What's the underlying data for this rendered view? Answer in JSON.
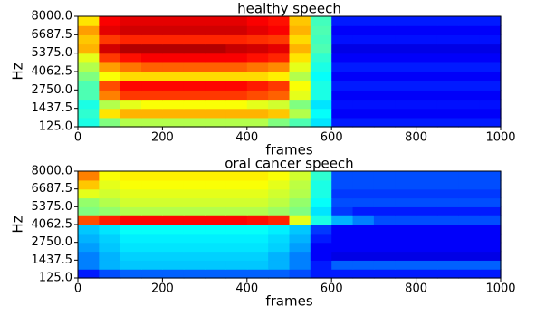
{
  "chart_data": [
    {
      "type": "heatmap",
      "title": "healthy speech",
      "xlabel": "frames",
      "ylabel": "Hz",
      "colormap": "jet",
      "zlim": [
        0,
        1
      ],
      "xlim": [
        0,
        1000
      ],
      "xticks": [
        0,
        200,
        400,
        600,
        800,
        1000
      ],
      "ylim": [
        125,
        8000
      ],
      "yticks": [
        {
          "value": 125,
          "label": "125.0"
        },
        1437.5,
        {
          "value": 2750,
          "label": "2750.0"
        },
        4062.5,
        {
          "value": 5375,
          "label": "5375.0"
        },
        6687.5,
        {
          "value": 8000,
          "label": "8000.0"
        }
      ],
      "xbins": [
        0,
        50,
        100,
        150,
        200,
        250,
        300,
        350,
        400,
        450,
        500,
        550,
        600,
        650,
        700,
        750,
        800,
        850,
        900,
        950,
        1000
      ],
      "ybins": [
        125,
        781.25,
        1437.5,
        2093.75,
        2750,
        3406.25,
        4062.5,
        4718.75,
        5375,
        6031.25,
        6687.5,
        7343.75,
        8000
      ],
      "values": [
        [
          0.4,
          0.5,
          0.55,
          0.55,
          0.55,
          0.55,
          0.55,
          0.55,
          0.55,
          0.5,
          0.45,
          0.35,
          0.15,
          0.15,
          0.15,
          0.15,
          0.15,
          0.15,
          0.15,
          0.15
        ],
        [
          0.42,
          0.65,
          0.7,
          0.7,
          0.7,
          0.7,
          0.7,
          0.7,
          0.7,
          0.68,
          0.55,
          0.38,
          0.12,
          0.12,
          0.12,
          0.12,
          0.12,
          0.12,
          0.12,
          0.12
        ],
        [
          0.4,
          0.55,
          0.6,
          0.62,
          0.62,
          0.62,
          0.62,
          0.62,
          0.6,
          0.58,
          0.5,
          0.35,
          0.14,
          0.14,
          0.14,
          0.14,
          0.14,
          0.14,
          0.14,
          0.14
        ],
        [
          0.45,
          0.75,
          0.82,
          0.82,
          0.82,
          0.82,
          0.82,
          0.82,
          0.8,
          0.78,
          0.6,
          0.4,
          0.12,
          0.12,
          0.12,
          0.12,
          0.12,
          0.12,
          0.12,
          0.12
        ],
        [
          0.45,
          0.8,
          0.87,
          0.87,
          0.87,
          0.87,
          0.87,
          0.87,
          0.85,
          0.82,
          0.62,
          0.4,
          0.15,
          0.15,
          0.15,
          0.15,
          0.15,
          0.15,
          0.15,
          0.15
        ],
        [
          0.5,
          0.62,
          0.66,
          0.66,
          0.66,
          0.66,
          0.66,
          0.66,
          0.66,
          0.64,
          0.55,
          0.38,
          0.12,
          0.12,
          0.12,
          0.12,
          0.12,
          0.12,
          0.12,
          0.12
        ],
        [
          0.55,
          0.72,
          0.76,
          0.78,
          0.78,
          0.78,
          0.78,
          0.78,
          0.76,
          0.74,
          0.6,
          0.4,
          0.15,
          0.15,
          0.15,
          0.15,
          0.15,
          0.15,
          0.15,
          0.15
        ],
        [
          0.6,
          0.82,
          0.86,
          0.88,
          0.88,
          0.88,
          0.88,
          0.88,
          0.86,
          0.84,
          0.65,
          0.42,
          0.12,
          0.12,
          0.12,
          0.12,
          0.12,
          0.12,
          0.12,
          0.12
        ],
        [
          0.7,
          0.92,
          0.95,
          0.95,
          0.95,
          0.95,
          0.95,
          0.93,
          0.92,
          0.9,
          0.7,
          0.45,
          0.1,
          0.1,
          0.1,
          0.1,
          0.1,
          0.1,
          0.1,
          0.1
        ],
        [
          0.68,
          0.82,
          0.84,
          0.84,
          0.84,
          0.84,
          0.84,
          0.84,
          0.83,
          0.82,
          0.66,
          0.44,
          0.14,
          0.14,
          0.14,
          0.14,
          0.14,
          0.14,
          0.14,
          0.14
        ],
        [
          0.72,
          0.9,
          0.92,
          0.92,
          0.92,
          0.92,
          0.92,
          0.92,
          0.9,
          0.88,
          0.7,
          0.45,
          0.12,
          0.12,
          0.12,
          0.12,
          0.12,
          0.12,
          0.12,
          0.12
        ],
        [
          0.65,
          0.88,
          0.9,
          0.9,
          0.9,
          0.9,
          0.9,
          0.9,
          0.88,
          0.86,
          0.68,
          0.44,
          0.15,
          0.15,
          0.15,
          0.15,
          0.15,
          0.15,
          0.15,
          0.15
        ]
      ]
    },
    {
      "type": "heatmap",
      "title": "oral cancer speech",
      "xlabel": "frames",
      "ylabel": "Hz",
      "colormap": "jet",
      "zlim": [
        0,
        1
      ],
      "xlim": [
        0,
        1000
      ],
      "xticks": [
        0,
        200,
        400,
        600,
        800,
        1000
      ],
      "ylim": [
        125,
        8000
      ],
      "yticks": [
        {
          "value": 125,
          "label": "125.0"
        },
        1437.5,
        {
          "value": 2750,
          "label": "2750.0"
        },
        4062.5,
        {
          "value": 5375,
          "label": "5375.0"
        },
        6687.5,
        {
          "value": 8000,
          "label": "8000.0"
        }
      ],
      "xbins": [
        0,
        50,
        100,
        150,
        200,
        250,
        300,
        350,
        400,
        450,
        500,
        550,
        600,
        650,
        700,
        750,
        800,
        850,
        900,
        950,
        1000
      ],
      "ybins": [
        125,
        781.25,
        1437.5,
        2093.75,
        2750,
        3406.25,
        4062.5,
        4718.75,
        5375,
        6031.25,
        6687.5,
        7343.75,
        8000
      ],
      "values": [
        [
          0.15,
          0.2,
          0.22,
          0.22,
          0.22,
          0.22,
          0.22,
          0.22,
          0.22,
          0.22,
          0.2,
          0.15,
          0.15,
          0.15,
          0.15,
          0.15,
          0.15,
          0.15,
          0.15,
          0.15
        ],
        [
          0.25,
          0.3,
          0.32,
          0.32,
          0.32,
          0.32,
          0.32,
          0.32,
          0.32,
          0.3,
          0.25,
          0.15,
          0.22,
          0.22,
          0.22,
          0.22,
          0.22,
          0.22,
          0.22,
          0.22
        ],
        [
          0.25,
          0.3,
          0.33,
          0.33,
          0.33,
          0.33,
          0.33,
          0.33,
          0.33,
          0.3,
          0.25,
          0.12,
          0.1,
          0.1,
          0.1,
          0.1,
          0.1,
          0.1,
          0.1,
          0.1
        ],
        [
          0.28,
          0.32,
          0.35,
          0.35,
          0.35,
          0.35,
          0.35,
          0.35,
          0.35,
          0.33,
          0.28,
          0.12,
          0.12,
          0.12,
          0.12,
          0.12,
          0.12,
          0.12,
          0.12,
          0.12
        ],
        [
          0.3,
          0.33,
          0.36,
          0.36,
          0.36,
          0.36,
          0.36,
          0.36,
          0.36,
          0.34,
          0.3,
          0.15,
          0.12,
          0.12,
          0.12,
          0.12,
          0.12,
          0.12,
          0.12,
          0.12
        ],
        [
          0.32,
          0.35,
          0.38,
          0.38,
          0.38,
          0.38,
          0.38,
          0.38,
          0.38,
          0.36,
          0.32,
          0.18,
          0.12,
          0.12,
          0.12,
          0.12,
          0.12,
          0.12,
          0.12,
          0.12
        ],
        [
          0.8,
          0.85,
          0.87,
          0.87,
          0.87,
          0.87,
          0.87,
          0.87,
          0.86,
          0.84,
          0.6,
          0.4,
          0.3,
          0.25,
          0.2,
          0.2,
          0.2,
          0.2,
          0.2,
          0.2
        ],
        [
          0.5,
          0.52,
          0.55,
          0.55,
          0.55,
          0.55,
          0.55,
          0.55,
          0.55,
          0.53,
          0.5,
          0.35,
          0.18,
          0.15,
          0.15,
          0.15,
          0.15,
          0.15,
          0.15,
          0.15
        ],
        [
          0.52,
          0.55,
          0.58,
          0.58,
          0.58,
          0.58,
          0.58,
          0.58,
          0.58,
          0.56,
          0.52,
          0.38,
          0.2,
          0.2,
          0.2,
          0.2,
          0.2,
          0.2,
          0.2,
          0.2
        ],
        [
          0.6,
          0.58,
          0.6,
          0.6,
          0.6,
          0.6,
          0.6,
          0.6,
          0.6,
          0.58,
          0.55,
          0.4,
          0.18,
          0.18,
          0.18,
          0.18,
          0.18,
          0.18,
          0.18,
          0.18
        ],
        [
          0.68,
          0.6,
          0.62,
          0.62,
          0.62,
          0.62,
          0.62,
          0.62,
          0.62,
          0.6,
          0.56,
          0.4,
          0.2,
          0.2,
          0.2,
          0.2,
          0.2,
          0.2,
          0.2,
          0.2
        ],
        [
          0.75,
          0.62,
          0.64,
          0.64,
          0.64,
          0.64,
          0.64,
          0.64,
          0.64,
          0.62,
          0.58,
          0.42,
          0.2,
          0.2,
          0.2,
          0.2,
          0.2,
          0.2,
          0.2,
          0.2
        ]
      ]
    }
  ]
}
